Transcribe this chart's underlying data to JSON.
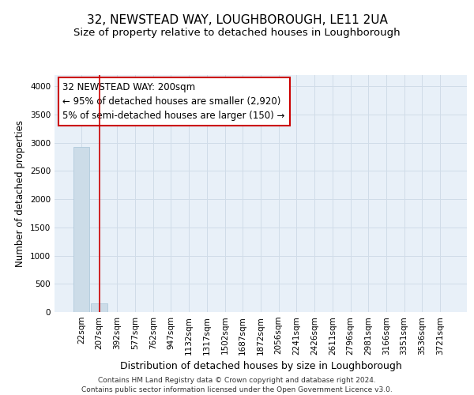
{
  "title1": "32, NEWSTEAD WAY, LOUGHBOROUGH, LE11 2UA",
  "title2": "Size of property relative to detached houses in Loughborough",
  "xlabel": "Distribution of detached houses by size in Loughborough",
  "ylabel": "Number of detached properties",
  "categories": [
    "22sqm",
    "207sqm",
    "392sqm",
    "577sqm",
    "762sqm",
    "947sqm",
    "1132sqm",
    "1317sqm",
    "1502sqm",
    "1687sqm",
    "1872sqm",
    "2056sqm",
    "2241sqm",
    "2426sqm",
    "2611sqm",
    "2796sqm",
    "2981sqm",
    "3166sqm",
    "3351sqm",
    "3536sqm",
    "3721sqm"
  ],
  "bar_values": [
    2920,
    150,
    0,
    0,
    0,
    0,
    0,
    0,
    0,
    0,
    0,
    0,
    0,
    0,
    0,
    0,
    0,
    0,
    0,
    0,
    0
  ],
  "bar_color": "#ccdce8",
  "bar_edge_color": "#a8c4d8",
  "grid_color": "#d0dce8",
  "background_color": "#e8f0f8",
  "vline_color": "#cc0000",
  "annotation_line1": "32 NEWSTEAD WAY: 200sqm",
  "annotation_line2": "← 95% of detached houses are smaller (2,920)",
  "annotation_line3": "5% of semi-detached houses are larger (150) →",
  "annotation_box_color": "white",
  "annotation_box_edge": "#cc0000",
  "ylim": [
    0,
    4200
  ],
  "yticks": [
    0,
    500,
    1000,
    1500,
    2000,
    2500,
    3000,
    3500,
    4000
  ],
  "footnote": "Contains HM Land Registry data © Crown copyright and database right 2024.\nContains public sector information licensed under the Open Government Licence v3.0.",
  "title1_fontsize": 11,
  "title2_fontsize": 9.5,
  "xlabel_fontsize": 9,
  "ylabel_fontsize": 8.5,
  "tick_fontsize": 7.5,
  "annotation_fontsize": 8.5,
  "footnote_fontsize": 6.5
}
